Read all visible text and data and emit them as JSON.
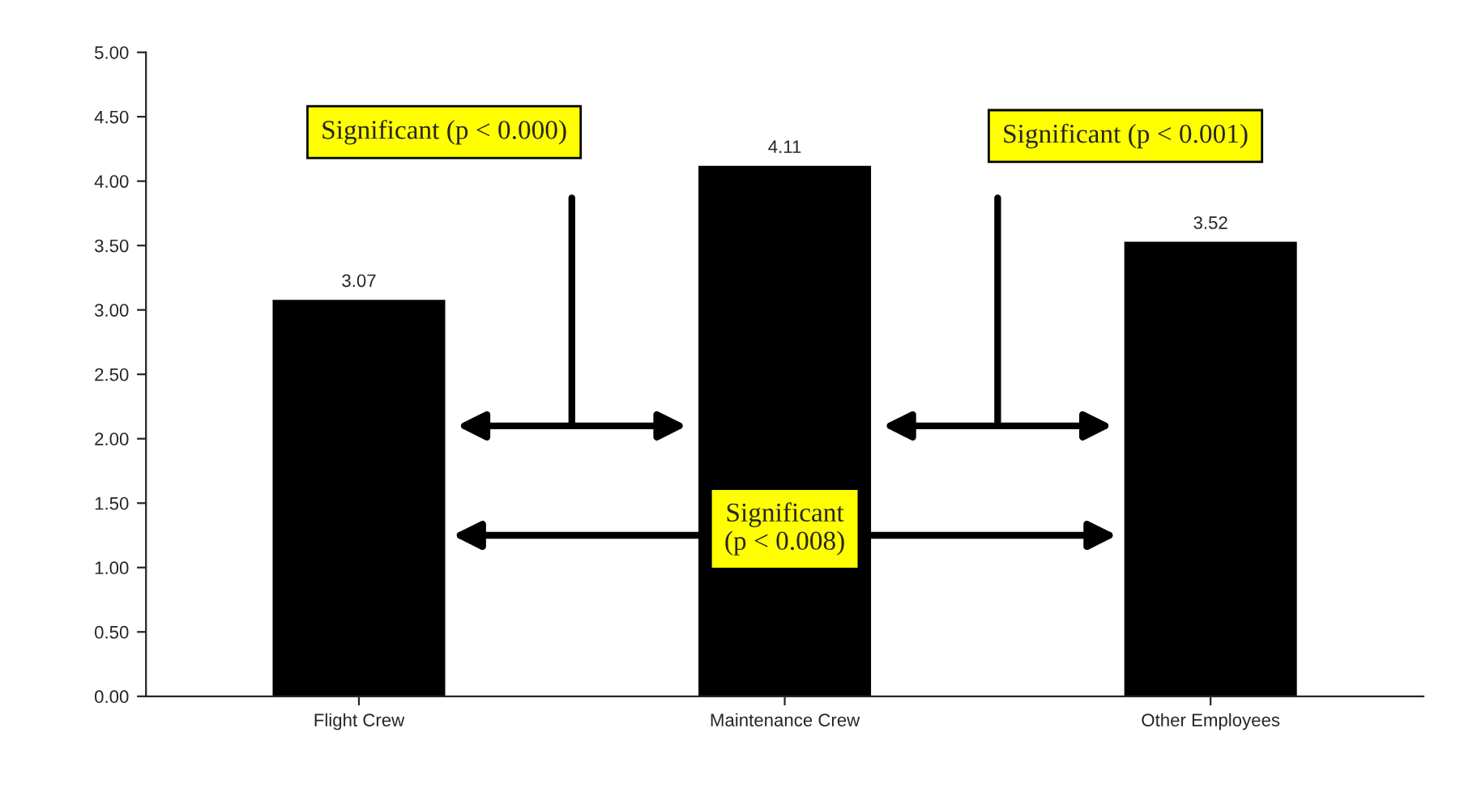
{
  "chart_data": {
    "type": "bar",
    "categories": [
      "Flight Crew",
      "Maintenance Crew",
      "Other Employees"
    ],
    "values": [
      3.07,
      4.11,
      3.52
    ],
    "color": "#000000",
    "ylim": [
      0,
      5
    ],
    "yticks": [
      {
        "value": 0,
        "label": "0.00"
      },
      {
        "value": 0.5,
        "label": "0.50"
      },
      {
        "value": 1,
        "label": "1.00"
      },
      {
        "value": 1.5,
        "label": "1.50"
      },
      {
        "value": 2,
        "label": "2.00"
      },
      {
        "value": 2.5,
        "label": "2.50"
      },
      {
        "value": 3,
        "label": "3.00"
      },
      {
        "value": 3.5,
        "label": "3.50"
      },
      {
        "value": 4,
        "label": "4.00"
      },
      {
        "value": 4.5,
        "label": "4.50"
      },
      {
        "value": 5,
        "label": "5.00"
      }
    ],
    "value_labels": [
      "3.07",
      "4.11",
      "3.52"
    ],
    "annotations": [
      "Significant (p < 0.000)",
      "Significant (p < 0.001)",
      "Significant\n(p < 0.008)"
    ]
  }
}
